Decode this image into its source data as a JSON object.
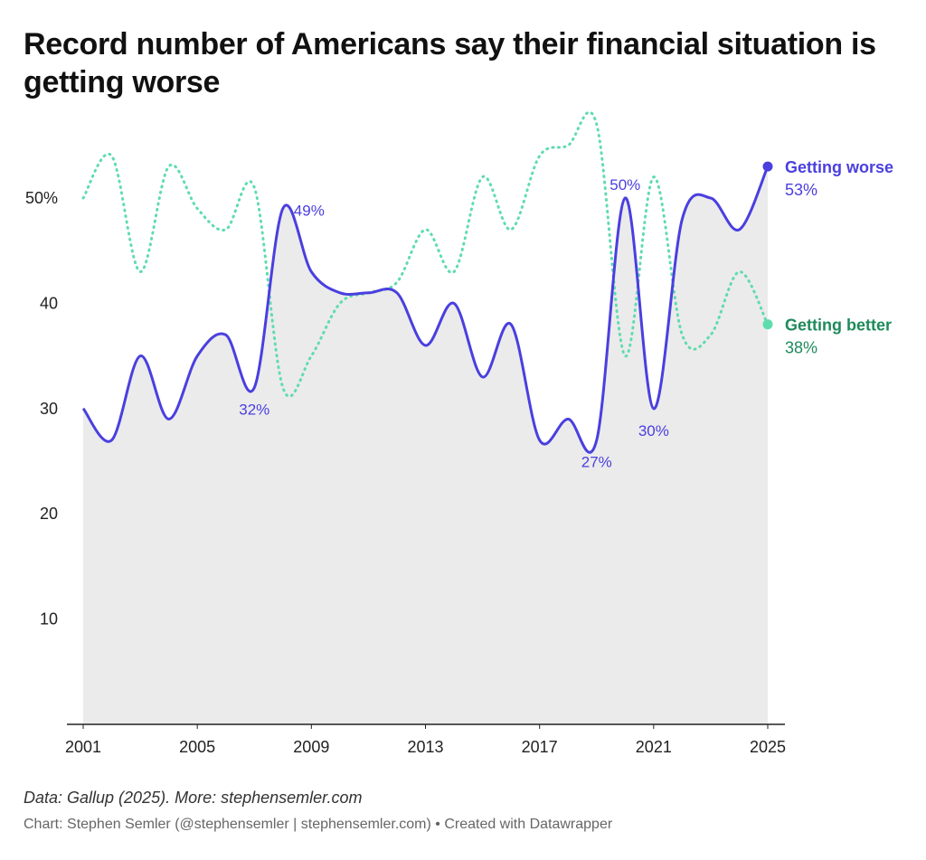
{
  "title": "Record number of Americans say their financial situation is getting worse",
  "source": "Data: Gallup (2025). More: stephensemler.com",
  "credit": "Chart: Stephen Semler (@stephensemler | stephensemler.com) • Created with Datawrapper",
  "colors": {
    "worse": "#4a3fdf",
    "better_line": "#5fdcae",
    "better_text": "#1e8a5a",
    "area": "#ebebeb"
  },
  "chart_data": {
    "type": "line",
    "x": [
      2001,
      2002,
      2003,
      2004,
      2005,
      2006,
      2007,
      2008,
      2009,
      2010,
      2011,
      2012,
      2013,
      2014,
      2015,
      2016,
      2017,
      2018,
      2019,
      2020,
      2021,
      2022,
      2023,
      2024,
      2025
    ],
    "series": [
      {
        "name": "Getting worse",
        "values": [
          30,
          27,
          35,
          29,
          35,
          37,
          32,
          49,
          43,
          41,
          41,
          41,
          36,
          40,
          33,
          38,
          27,
          29,
          27,
          50,
          30,
          48,
          50,
          47,
          53
        ],
        "style": "solid",
        "area_fill": true,
        "end_label": "53%"
      },
      {
        "name": "Getting better",
        "values": [
          50,
          54,
          43,
          53,
          49,
          47,
          51,
          32,
          35,
          40,
          41,
          42,
          47,
          43,
          52,
          47,
          54,
          55,
          57,
          35,
          52,
          37,
          37,
          43,
          38
        ],
        "style": "dotted",
        "end_label": "38%"
      }
    ],
    "x_ticks": [
      "2001",
      "2005",
      "2009",
      "2013",
      "2017",
      "2021",
      "2025"
    ],
    "y_ticks": [
      "10",
      "20",
      "30",
      "40",
      "50%"
    ],
    "y_tick_values": [
      10,
      20,
      30,
      40,
      50
    ],
    "ylim": [
      0,
      56
    ],
    "xlim": [
      2001,
      2025
    ],
    "annotations": [
      {
        "x": 2007,
        "y": 32,
        "text": "32%",
        "series": "Getting worse",
        "pos": "below"
      },
      {
        "x": 2008,
        "y": 49,
        "text": "49%",
        "series": "Getting worse",
        "pos": "right"
      },
      {
        "x": 2019,
        "y": 27,
        "text": "27%",
        "series": "Getting worse",
        "pos": "below"
      },
      {
        "x": 2020,
        "y": 50,
        "text": "50%",
        "series": "Getting worse",
        "pos": "above"
      },
      {
        "x": 2021,
        "y": 30,
        "text": "30%",
        "series": "Getting worse",
        "pos": "below"
      }
    ],
    "grid": false,
    "legend": "direct labels at line ends"
  }
}
